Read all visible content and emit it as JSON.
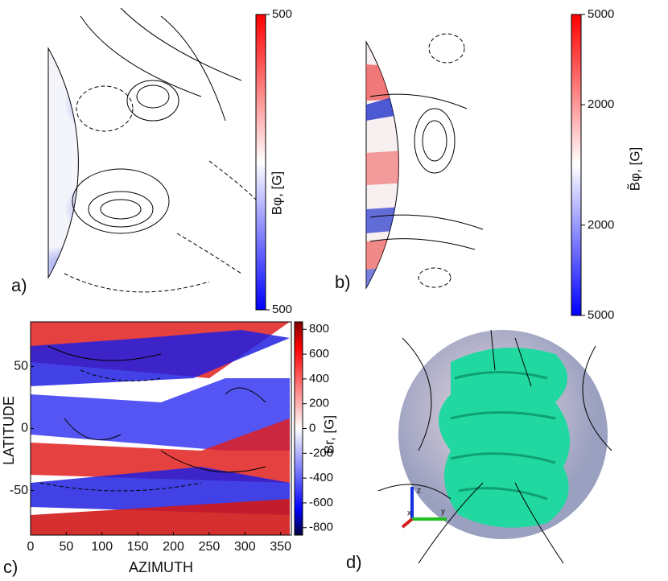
{
  "chart_data": [
    {
      "type": "meridional",
      "panel_label": "a)",
      "colorbar_label": "Bφ, [G]",
      "clim": [
        -500,
        500
      ],
      "cticks": [
        500,
        {
          "value": -500,
          "label": "500"
        }
      ]
    },
    {
      "type": "meridional",
      "panel_label": "b)",
      "colorbar_label": "B̃φ, [G]",
      "clim": [
        -5000,
        5000
      ],
      "cticks": [
        5000,
        2000,
        {
          "value": -2000,
          "label": "2000"
        },
        {
          "value": -5000,
          "label": "5000"
        }
      ]
    },
    {
      "type": "heatmap",
      "panel_label": "c)",
      "xlabel": "AZIMUTH",
      "ylabel": "LATITUDE",
      "colorbar_label": "Br, [G]",
      "xlim": [
        0,
        365
      ],
      "xticks": [
        0,
        50,
        100,
        150,
        200,
        250,
        300,
        350
      ],
      "ylim": [
        -86,
        86
      ],
      "yticks": [
        -50,
        0,
        50
      ],
      "clim": [
        -860,
        860
      ],
      "cticks": [
        -800,
        -600,
        -400,
        -200,
        0,
        200,
        400,
        600,
        800
      ]
    },
    {
      "type": "render3d",
      "panel_label": "d)",
      "axis_labels": [
        "x",
        "y",
        "z"
      ]
    }
  ]
}
